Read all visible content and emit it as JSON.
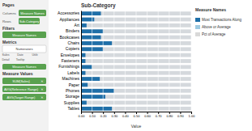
{
  "chart_data": {
    "type": "bar",
    "orientation": "horizontal",
    "title": "Sub-Category",
    "x_label": "Value",
    "categories": [
      "Accessories",
      "Appliances",
      "Art",
      "Binders",
      "Bookcases",
      "Chairs",
      "Copiers",
      "Envelopes",
      "Fasteners",
      "Furnishings",
      "Labels",
      "Machines",
      "Paper",
      "Phones",
      "Storage",
      "Supplies",
      "Tables"
    ],
    "values": [
      0.18,
      0.12,
      0.05,
      0.2,
      0.18,
      0.28,
      0.2,
      0.04,
      0.04,
      0.1,
      0.04,
      0.17,
      0.06,
      0.3,
      0.22,
      0.05,
      0.28
    ],
    "color": "#1f6fa8",
    "xlim": [
      0,
      1.0
    ],
    "xticks": [
      {
        "value": 0.0,
        "label": "0.00"
      },
      {
        "value": 0.1,
        "label": "0.10"
      },
      {
        "value": 0.2,
        "label": "0.20"
      },
      {
        "value": 0.3,
        "label": "0.30"
      },
      {
        "value": 0.4,
        "label": "0.40"
      },
      {
        "value": 0.5,
        "label": "0.50"
      },
      {
        "value": 0.6,
        "label": "0.60"
      },
      {
        "value": 0.7,
        "label": "0.70"
      },
      {
        "value": 0.8,
        "label": "0.80"
      },
      {
        "value": 0.9,
        "label": "0.90"
      },
      {
        "value": 1.0,
        "label": "1.00"
      }
    ],
    "grid": true,
    "legend": "right",
    "legend_title": "Measure Names",
    "legend_entries": [
      {
        "name": "Most Transactions Along",
        "color": "#1f6fa8"
      },
      {
        "name": "Above or Average",
        "color": "#9ecae1"
      },
      {
        "name": "Pct of Average",
        "color": "#d9d9d9"
      }
    ],
    "annotations": [
      "Pages",
      "Columns",
      "Measure Names",
      "Rows",
      "Sub-Category",
      "Filters",
      "Measure Names",
      "Metrics",
      "Numerators",
      "Sales",
      "Date",
      "Utilit",
      "Detail",
      "Tooltip",
      "Measure Names",
      "Measure Values",
      "SUM(Sales)",
      "AVG(Reference Range)",
      "AVG(Target Range)",
      "✕",
      "✕",
      "✕"
    ]
  }
}
